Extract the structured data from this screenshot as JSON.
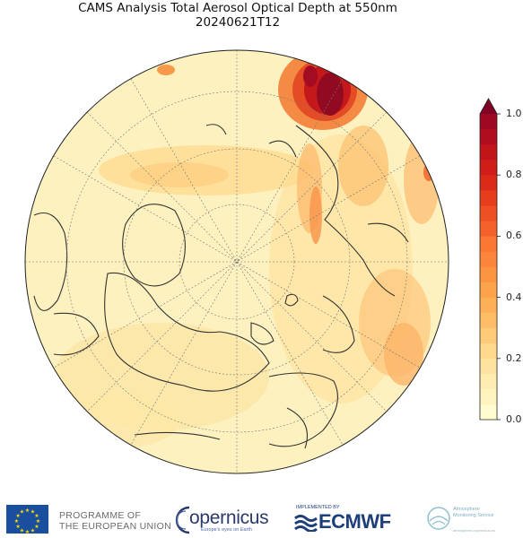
{
  "header": {
    "title": "CAMS Analysis Total Aerosol Optical Depth at 550nm",
    "subtitle": "20240621T12"
  },
  "map": {
    "projection": "north-polar-stereographic",
    "field": "Total Aerosol Optical Depth at 550nm",
    "background_color": "#fef3c4",
    "coastline_color": "#333333",
    "graticule": true
  },
  "colorbar": {
    "min": 0.0,
    "max": 1.0,
    "extend": "max",
    "tick_labels": [
      "0.0",
      "0.2",
      "0.4",
      "0.6",
      "0.8",
      "1.0"
    ],
    "levels": [
      0.0,
      0.05,
      0.1,
      0.15,
      0.2,
      0.25,
      0.3,
      0.35,
      0.4,
      0.45,
      0.5,
      0.55,
      0.6,
      0.65,
      0.7,
      0.75,
      0.8,
      0.85,
      0.9,
      0.95,
      1.0
    ],
    "colors": [
      "#fffccf",
      "#fff3bf",
      "#ffecb1",
      "#fee3a0",
      "#fed98e",
      "#fecb78",
      "#febe67",
      "#feb057",
      "#fda34b",
      "#fc9541",
      "#fb853a",
      "#f97633",
      "#f4622b",
      "#ee5024",
      "#e63d1d",
      "#dc2a19",
      "#d01d18",
      "#c11519",
      "#b00e1e",
      "#9e0823"
    ],
    "extend_color": "#800026"
  },
  "footer": {
    "eu_line1": "PROGRAMME OF",
    "eu_line2": "THE EUROPEAN UNION",
    "copernicus": "opernicus",
    "copernicus_tag": "Europe's eyes on Earth",
    "ecmwf_implemented": "IMPLEMENTED BY",
    "ecmwf": "ECMWF",
    "ams_line1": "Atmosphere",
    "ams_line2": "Monitoring Service",
    "ams_url": "atmosphere.copernicus.eu"
  }
}
